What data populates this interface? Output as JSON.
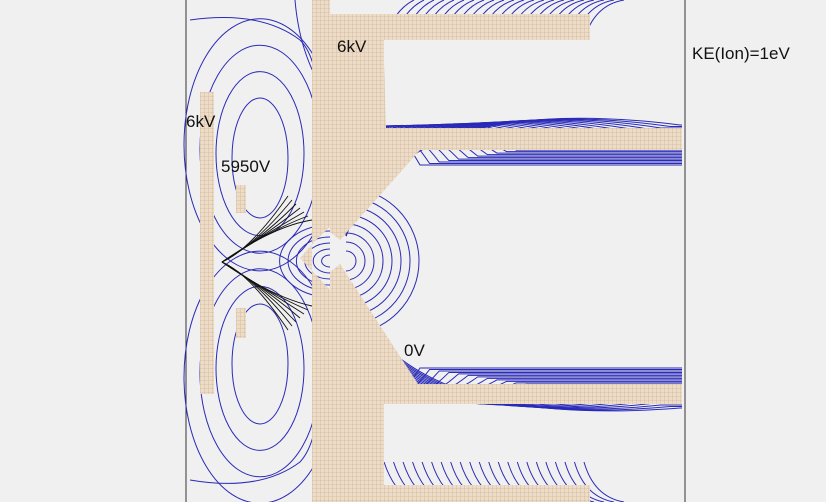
{
  "labels": {
    "voltage_top": "6kV",
    "voltage_left": "6kV",
    "voltage_inner": "5950V",
    "voltage_ground": "0V",
    "ion_energy": "KE(Ion)=1eV"
  },
  "colors": {
    "background": "#f0f0f0",
    "equipotential": "#2a2ab8",
    "electrode_fill": "#ecdcc8",
    "electrode_grid": "#c9a888",
    "trajectory": "#111111",
    "frame": "#333333"
  }
}
